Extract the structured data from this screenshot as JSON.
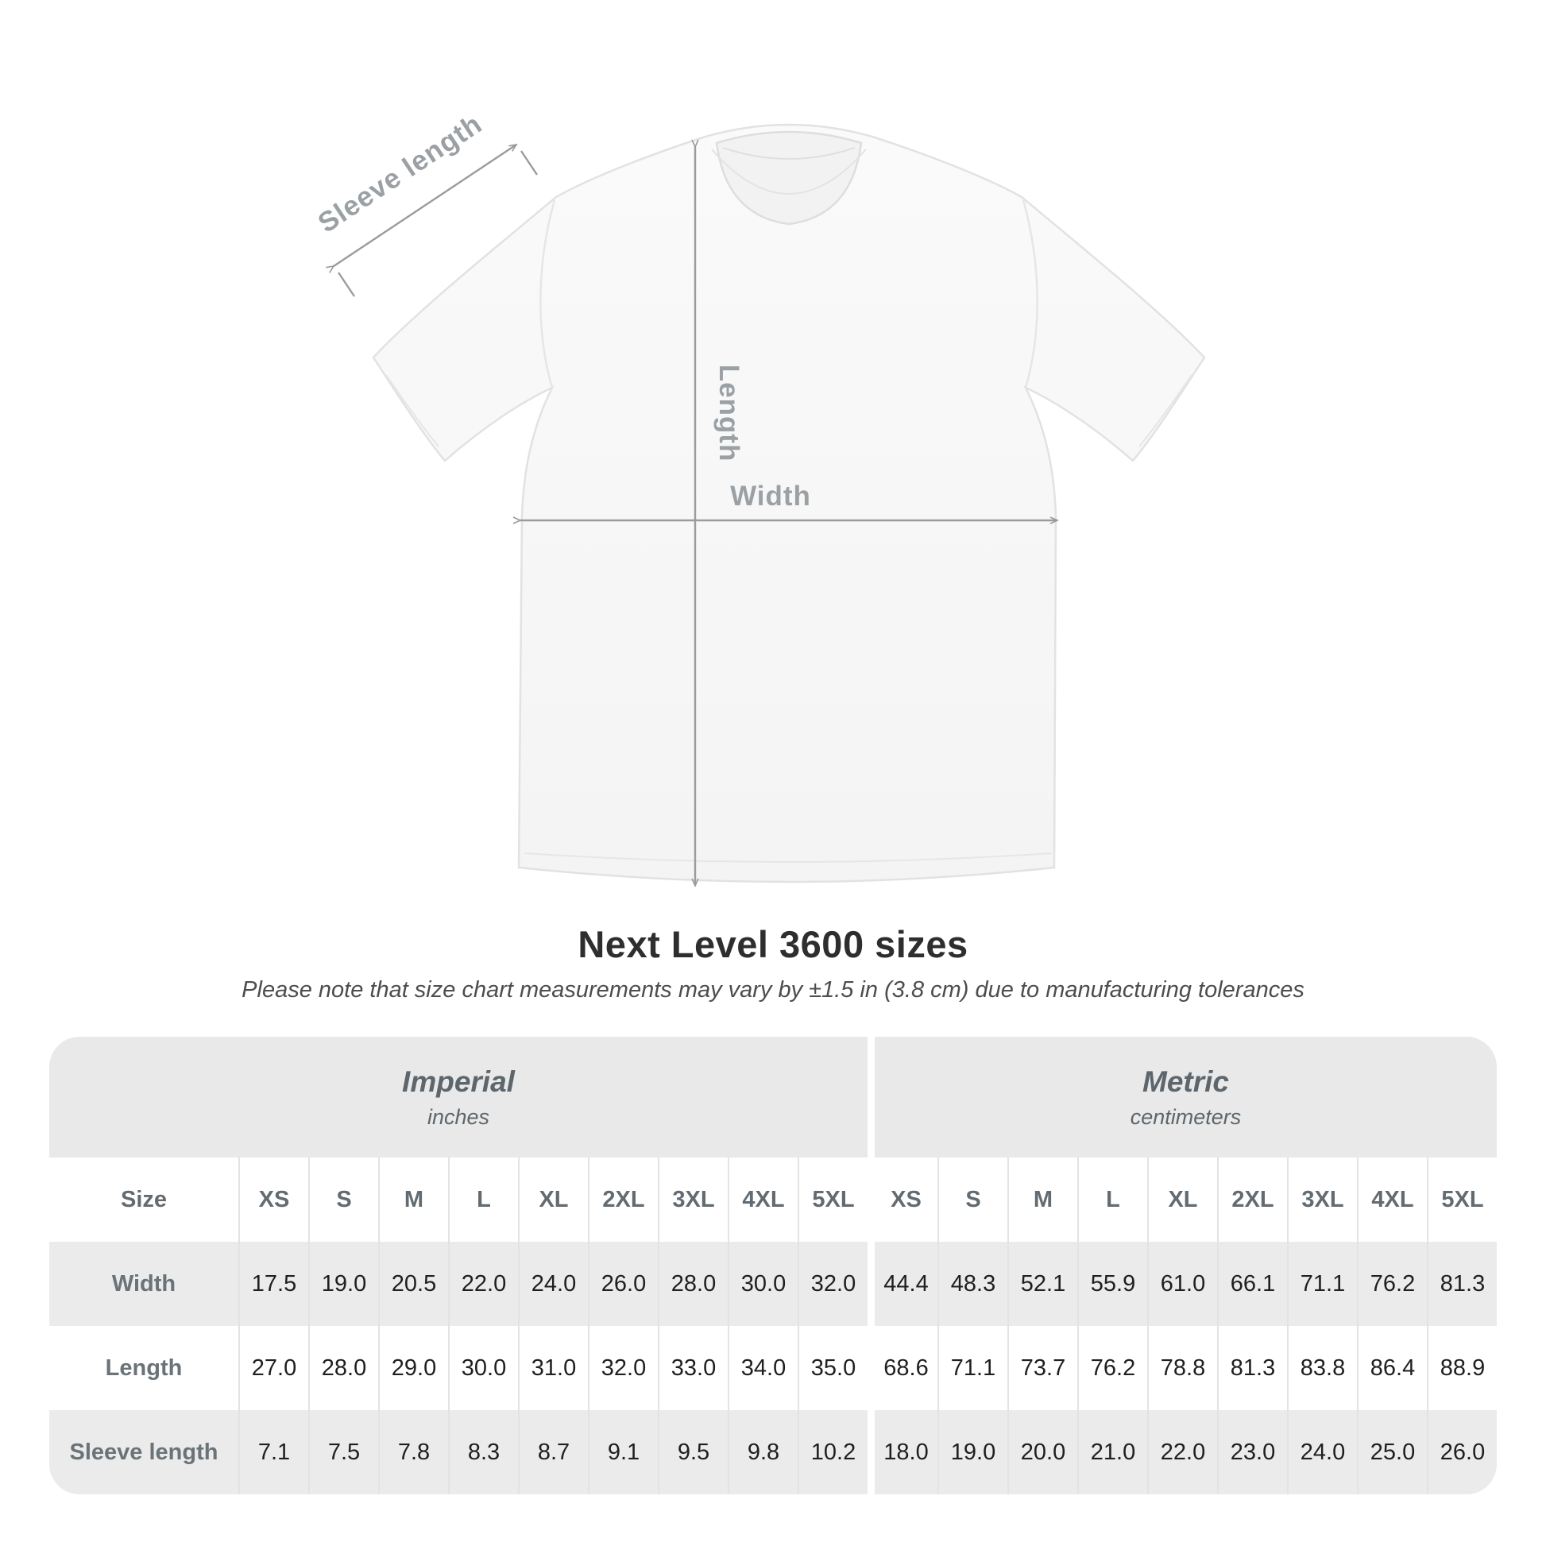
{
  "diagram": {
    "sleeve_length_label": "Sleeve length",
    "length_label": "Length",
    "width_label": "Width"
  },
  "title": "Next Level 3600 sizes",
  "subtitle": "Please note that size chart measurements may vary by ±1.5 in (3.8 cm) due to manufacturing tolerances",
  "table": {
    "unit_groups": [
      {
        "label": "Imperial",
        "sublabel": "inches"
      },
      {
        "label": "Metric",
        "sublabel": "centimeters"
      }
    ],
    "size_column_header": "Size",
    "size_headers": [
      "XS",
      "S",
      "M",
      "L",
      "XL",
      "2XL",
      "3XL",
      "4XL",
      "5XL"
    ],
    "rows": [
      {
        "label": "Width",
        "imperial": [
          "17.5",
          "19.0",
          "20.5",
          "22.0",
          "24.0",
          "26.0",
          "28.0",
          "30.0",
          "32.0"
        ],
        "metric": [
          "44.4",
          "48.3",
          "52.1",
          "55.9",
          "61.0",
          "66.1",
          "71.1",
          "76.2",
          "81.3"
        ]
      },
      {
        "label": "Length",
        "imperial": [
          "27.0",
          "28.0",
          "29.0",
          "30.0",
          "31.0",
          "32.0",
          "33.0",
          "34.0",
          "35.0"
        ],
        "metric": [
          "68.6",
          "71.1",
          "73.7",
          "76.2",
          "78.8",
          "81.3",
          "83.8",
          "86.4",
          "88.9"
        ]
      },
      {
        "label": "Sleeve length",
        "imperial": [
          "7.1",
          "7.5",
          "7.8",
          "8.3",
          "8.7",
          "9.1",
          "9.5",
          "9.8",
          "10.2"
        ],
        "metric": [
          "18.0",
          "19.0",
          "20.0",
          "21.0",
          "22.0",
          "23.0",
          "24.0",
          "25.0",
          "26.0"
        ]
      }
    ]
  },
  "colors": {
    "band_gray": "#e9e9e9",
    "row_gray": "#ebebeb",
    "separator": "#e3e3e3",
    "dimension_line": "#9b9b9b",
    "dimension_label": "#9aa0a4",
    "header_text": "#626b71",
    "data_text": "#1f1f1f",
    "title_text": "#2e2e2e"
  }
}
